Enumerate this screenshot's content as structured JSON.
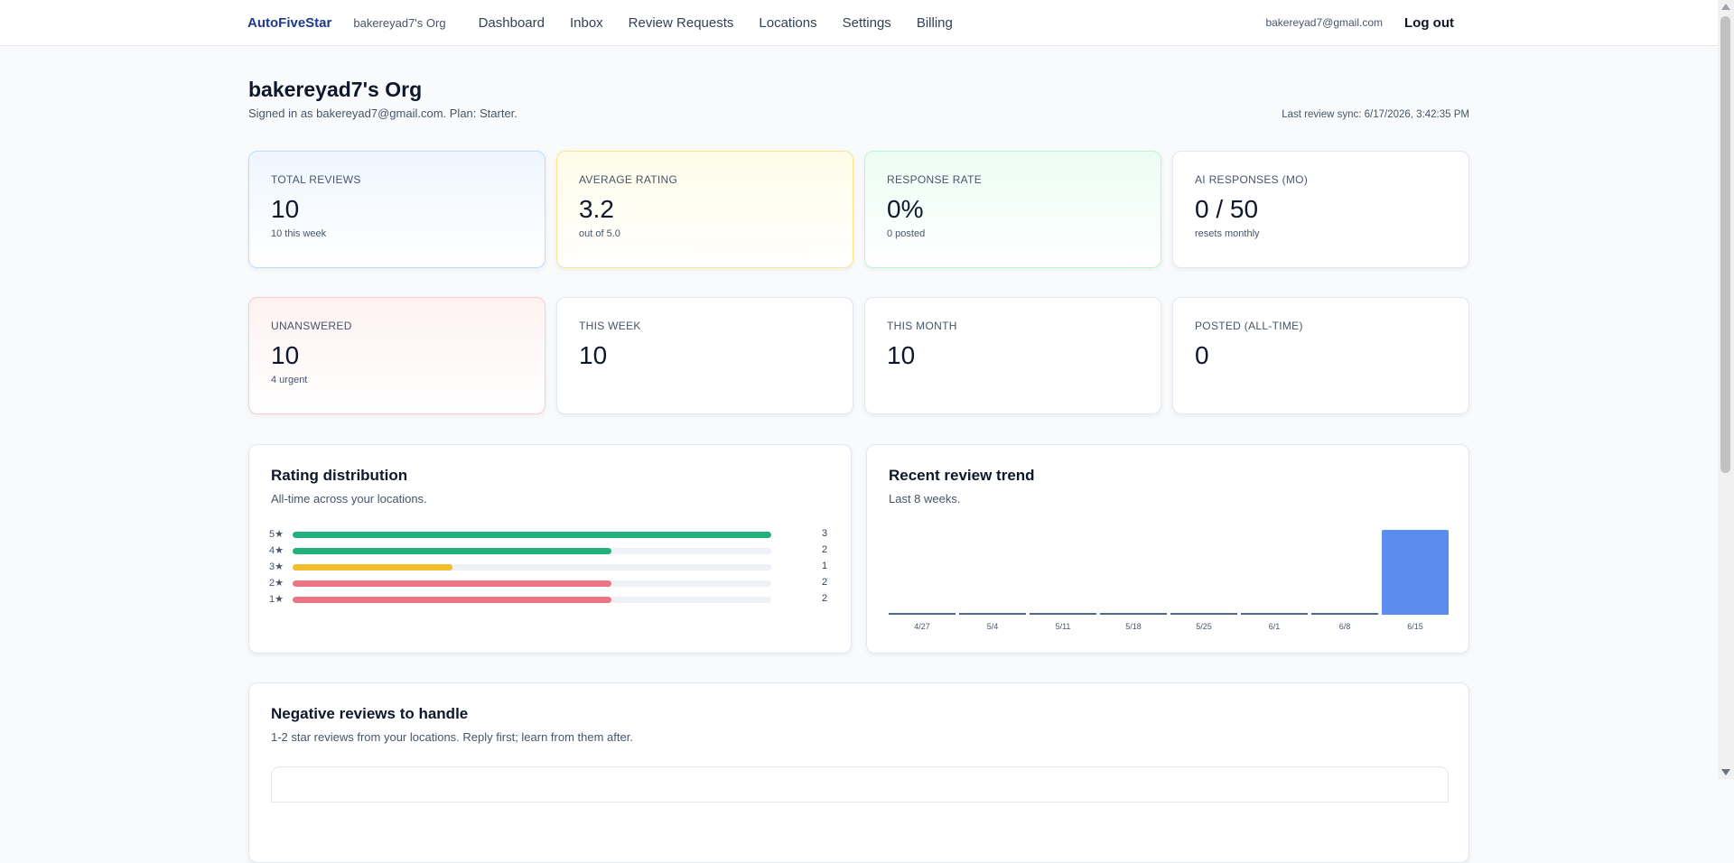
{
  "header": {
    "brand": "AutoFiveStar",
    "org": "bakereyad7's Org",
    "nav": [
      "Dashboard",
      "Inbox",
      "Review Requests",
      "Locations",
      "Settings",
      "Billing"
    ],
    "email": "bakereyad7@gmail.com",
    "logout": "Log out"
  },
  "page": {
    "title": "bakereyad7's Org",
    "subtitle": "Signed in as bakereyad7@gmail.com. Plan: Starter.",
    "sync": "Last review sync: 6/17/2026, 3:42:35 PM"
  },
  "stats": [
    {
      "label": "Total reviews",
      "value": "10",
      "hint": "10 this week"
    },
    {
      "label": "Average rating",
      "value": "3.2",
      "hint": "out of 5.0"
    },
    {
      "label": "Response rate",
      "value": "0%",
      "hint": "0 posted"
    },
    {
      "label": "AI responses (mo)",
      "value": "0 / 50",
      "hint": "resets monthly"
    },
    {
      "label": "Unanswered",
      "value": "10",
      "hint": "4 urgent"
    },
    {
      "label": "This week",
      "value": "10",
      "hint": ""
    },
    {
      "label": "This month",
      "value": "10",
      "hint": ""
    },
    {
      "label": "Posted (all-time)",
      "value": "0",
      "hint": ""
    }
  ],
  "distribution": {
    "title": "Rating distribution",
    "subtitle": "All-time across your locations.",
    "rows": [
      {
        "label": "5★",
        "count": "3",
        "value": 3,
        "color": "#22b07d"
      },
      {
        "label": "4★",
        "count": "2",
        "value": 2,
        "color": "#22b07d"
      },
      {
        "label": "3★",
        "count": "1",
        "value": 1,
        "color": "#f2bd2c"
      },
      {
        "label": "2★",
        "count": "2",
        "value": 2,
        "color": "#ec7585"
      },
      {
        "label": "1★",
        "count": "2",
        "value": 2,
        "color": "#ec7585"
      }
    ],
    "max": 3
  },
  "chart_data": {
    "type": "bar",
    "title": "Recent review trend",
    "subtitle": "Last 8 weeks.",
    "categories": [
      "4/27",
      "5/4",
      "5/11",
      "5/18",
      "5/25",
      "6/1",
      "6/8",
      "6/15"
    ],
    "values": [
      0,
      0,
      0,
      0,
      0,
      0,
      0,
      10
    ],
    "ylim": [
      0,
      10
    ],
    "color": "#5b8def"
  },
  "negative": {
    "title": "Negative reviews to handle",
    "subtitle": "1-2 star reviews from your locations. Reply first; learn from them after."
  }
}
